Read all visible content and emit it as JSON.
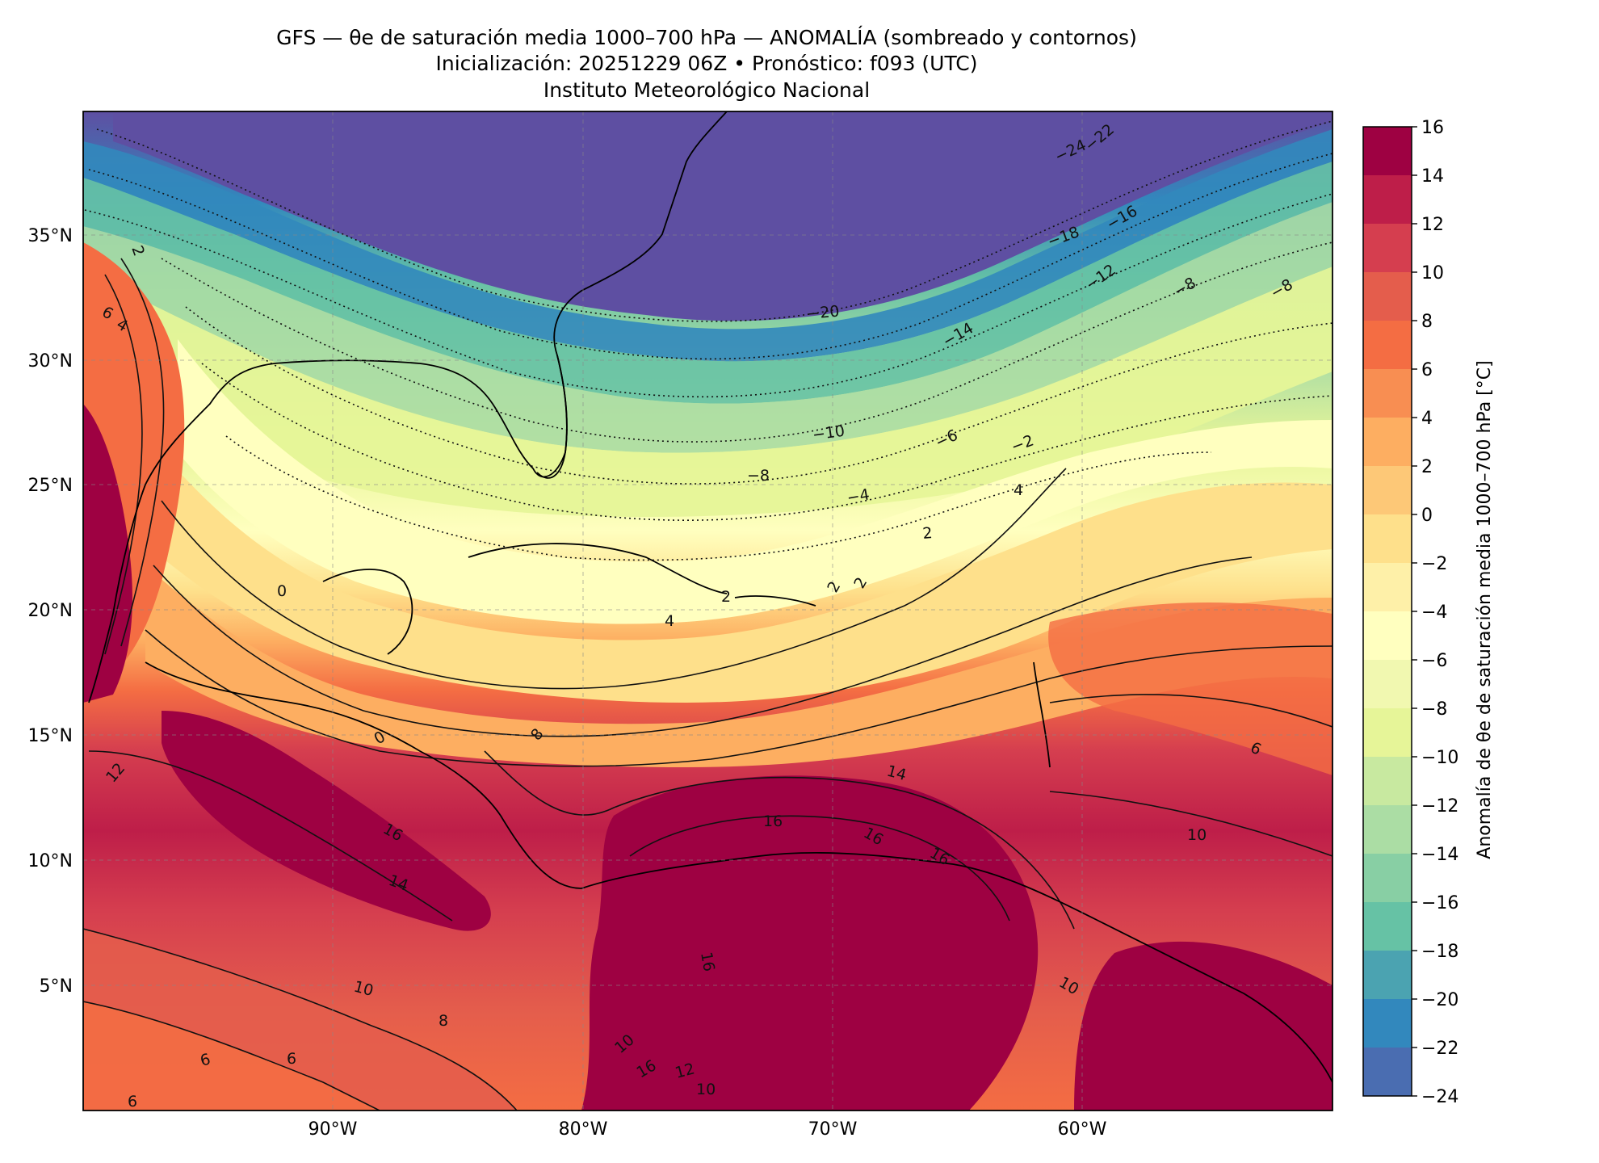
{
  "title": {
    "line1": "GFS — θe de saturación media 1000–700 hPa — ANOMALÍA (sombreado y contornos)",
    "line2": "Inicialización: 20251229 06Z   •   Pronóstico: f093 (UTC)",
    "line3": "Instituto Meteorológico Nacional"
  },
  "map": {
    "lat_ticks": [
      "35°N",
      "30°N",
      "25°N",
      "20°N",
      "15°N",
      "10°N",
      "5°N"
    ],
    "lon_ticks": [
      "90°W",
      "80°W",
      "70°W",
      "60°W"
    ],
    "lat_range": [
      0,
      40
    ],
    "lon_range": [
      -100,
      -50
    ],
    "grid": true
  },
  "colorbar": {
    "label": "Anomalía de θe de saturación media 1000–700 hPa [°C]",
    "ticks": [
      "16",
      "14",
      "12",
      "10",
      "8",
      "6",
      "4",
      "2",
      "0",
      "−2",
      "−4",
      "−6",
      "−8",
      "−10",
      "−12",
      "−14",
      "−16",
      "−18",
      "−20",
      "−22",
      "−24"
    ],
    "colors": [
      "#9e0142",
      "#be1e49",
      "#d53e4f",
      "#e45d4c",
      "#f46d43",
      "#f88e52",
      "#fdae61",
      "#fdc877",
      "#fee08b",
      "#fef0a8",
      "#ffffbf",
      "#f1f8b0",
      "#e6f598",
      "#c8e9a0",
      "#abdda4",
      "#88cfa4",
      "#66c2a5",
      "#4ba3b1",
      "#3288bd",
      "#4a6db1",
      "#5e4fa2"
    ]
  },
  "contour_labels": [
    "−24",
    "−22",
    "−16",
    "−18",
    "−12",
    "−8",
    "−8",
    "−20",
    "−14",
    "−10",
    "−6",
    "−2",
    "−8",
    "−4",
    "4",
    "2",
    "2",
    "2",
    "2",
    "0",
    "4",
    "0",
    "8",
    "6",
    "10",
    "10",
    "12",
    "16",
    "14",
    "14",
    "16",
    "16",
    "16",
    "10",
    "16",
    "10",
    "8",
    "6",
    "6",
    "6",
    "16",
    "12",
    "10",
    "2",
    "6",
    "4",
    "2"
  ]
}
